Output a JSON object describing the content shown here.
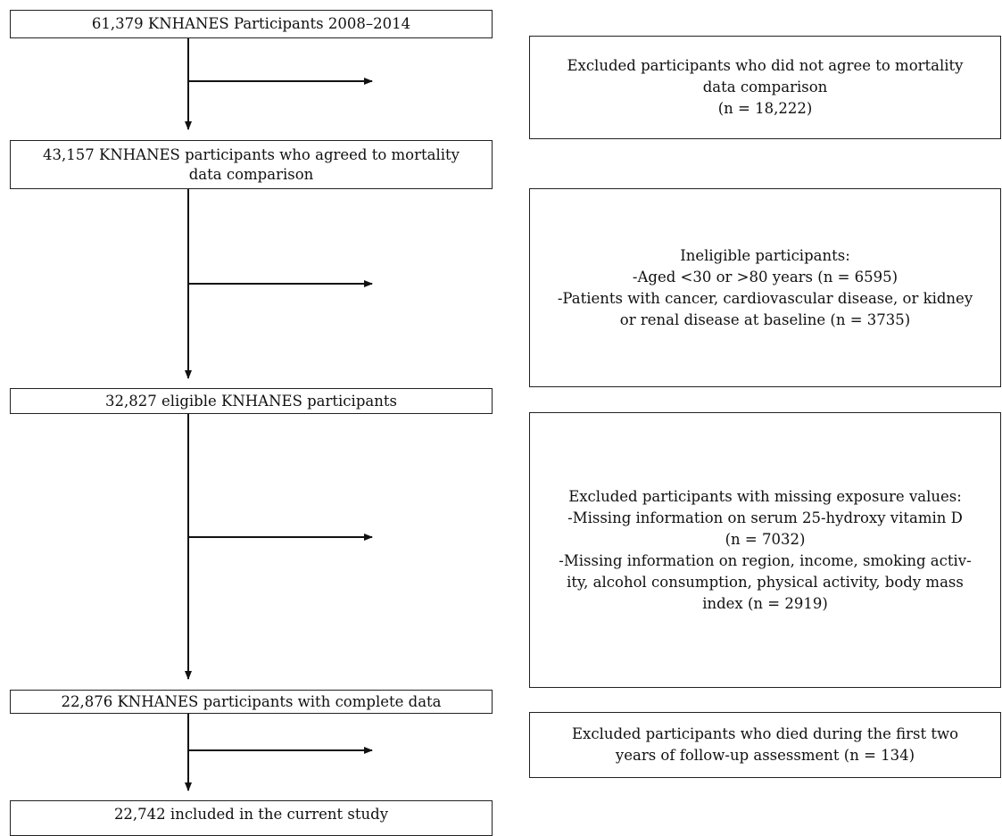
{
  "flow_boxes": [
    {
      "lines": [
        "61,379 KNHANES Participants 2008–2014"
      ]
    },
    {
      "lines": [
        "43,157 KNHANES participants who agreed to mortality",
        "data comparison"
      ]
    },
    {
      "lines": [
        "32,827 eligible KNHANES participants"
      ]
    },
    {
      "lines": [
        "22,876 KNHANES participants with complete data"
      ]
    },
    {
      "lines": [
        "22,742 included in the current study"
      ]
    }
  ],
  "exclusion_boxes": [
    {
      "lines": [
        "Excluded participants who did not agree to mortality",
        "data comparison",
        "(n = 18,222)"
      ]
    },
    {
      "lines": [
        "Ineligible participants:",
        "-Aged <30 or >80 years (n = 6595)",
        "-Patients with cancer, cardiovascular disease, or kidney",
        "or renal disease at baseline (n = 3735)"
      ]
    },
    {
      "lines": [
        "Excluded participants with missing exposure values:",
        "-Missing information on serum 25-hydroxy vitamin D",
        "(n = 7032)",
        "-Missing information on region, income, smoking activ-",
        "ity, alcohol consumption, physical activity, body mass",
        "index (n = 2919)"
      ]
    },
    {
      "lines": [
        "Excluded participants who died during the first two",
        "years of follow-up assessment (n = 134)"
      ]
    }
  ]
}
